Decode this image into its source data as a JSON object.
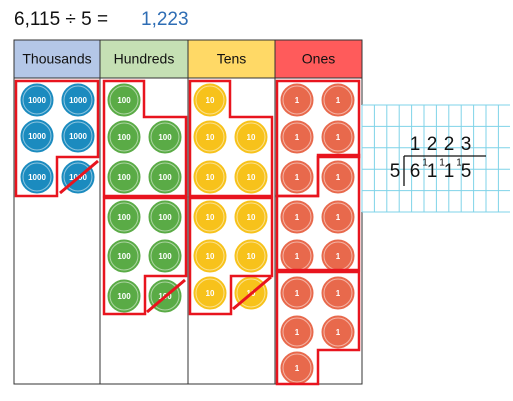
{
  "equation": {
    "left": "6,115 ÷ 5 =",
    "result": "1,223"
  },
  "columns": [
    {
      "header": "Thousands",
      "counter": "1000"
    },
    {
      "header": "Hundreds",
      "counter": "100"
    },
    {
      "header": "Tens",
      "counter": "10"
    },
    {
      "header": "Ones",
      "counter": "1"
    }
  ],
  "division": {
    "divisor": "5",
    "quotient": [
      "1",
      "2",
      "2",
      "3"
    ],
    "dividend": [
      "6",
      "1",
      "1",
      "5"
    ],
    "carries": [
      "1",
      "1",
      "1"
    ]
  }
}
